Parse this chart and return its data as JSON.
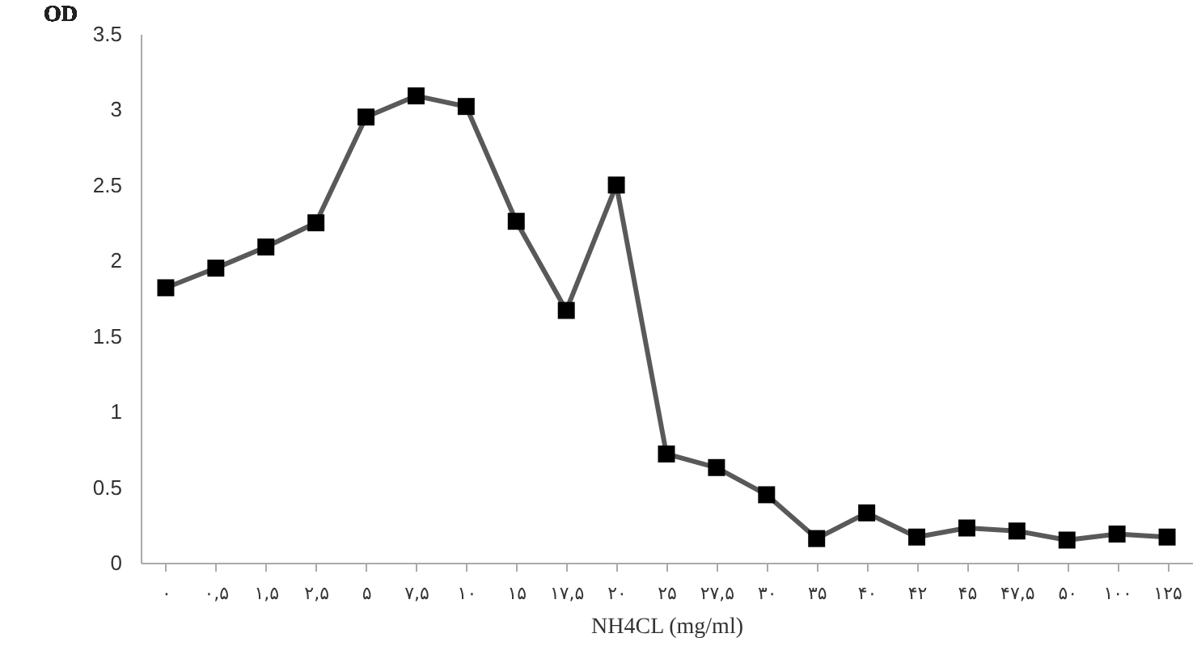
{
  "chart_data": {
    "type": "line",
    "xlabel": "NH4CL (mg/ml)",
    "ylabel": "OD",
    "categories": [
      "۰",
      "۰,۵",
      "۱,۵",
      "۲,۵",
      "۵",
      "۷,۵",
      "۱۰",
      "۱۵",
      "۱۷,۵",
      "۲۰",
      "۲۵",
      "۲۷,۵",
      "۳۰",
      "۳۵",
      "۴۰",
      "۴۲",
      "۴۵",
      "۴۷,۵",
      "۵۰",
      "۱۰۰",
      "۱۲۵"
    ],
    "series": [
      {
        "color": "#595959",
        "values": [
          1.82,
          1.95,
          2.09,
          2.25,
          2.95,
          3.09,
          3.02,
          2.26,
          1.67,
          2.5,
          0.72,
          0.63,
          0.45,
          0.16,
          0.33,
          0.17,
          0.23,
          0.21,
          0.15,
          0.19,
          0.17
        ]
      }
    ],
    "ylim": [
      0,
      3.5
    ],
    "yticks": [
      0,
      0.5,
      1,
      1.5,
      2,
      2.5,
      3,
      3.5
    ],
    "marker": "square",
    "grid": false,
    "line_style": "solid"
  }
}
